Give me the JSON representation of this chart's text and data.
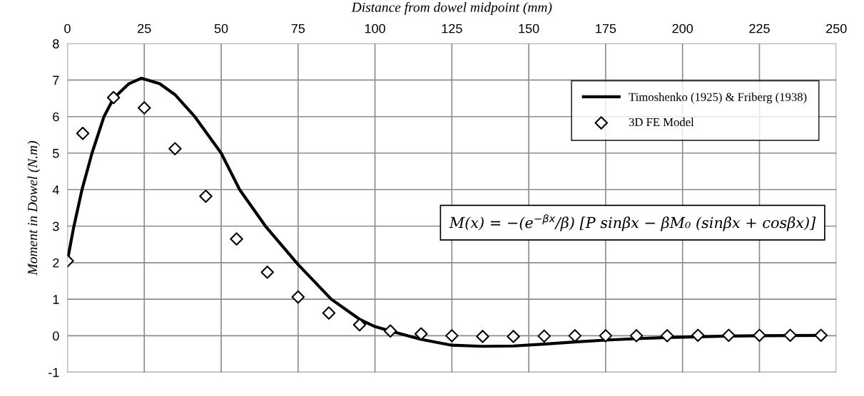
{
  "chart_data": {
    "type": "line",
    "xlabel": "Distance from dowel midpoint (mm)",
    "ylabel": "Moment in Dowel (N.m)",
    "xlim": [
      0,
      250
    ],
    "xticks": [
      0,
      25,
      50,
      75,
      100,
      125,
      150,
      175,
      200,
      225,
      250
    ],
    "ylim": [
      -1,
      8
    ],
    "yticks": [
      -1,
      0,
      1,
      2,
      3,
      4,
      5,
      6,
      7,
      8
    ],
    "grid": true,
    "legend": "top right",
    "annotations": [
      "M(x) = −(e$^{−βx}$/β) [P sinβx − βM₀ (sinβx + cosβx)]"
    ],
    "series": [
      {
        "name": "Timoshenko (1925) & Friberg (1938)",
        "color": "#000000",
        "marker": "none",
        "line_style": "solid",
        "x": [
          0,
          2,
          4.75,
          8,
          11.9,
          15,
          20,
          24,
          30,
          35,
          41.4,
          50,
          56,
          64.4,
          75,
          85.8,
          95,
          100,
          105,
          115,
          125,
          135,
          145,
          155,
          165,
          175,
          185,
          195,
          205,
          215,
          225,
          245
        ],
        "values": [
          2.05,
          2.95,
          4.0,
          5.0,
          6.0,
          6.5,
          6.9,
          7.05,
          6.9,
          6.6,
          6.0,
          5.0,
          4.0,
          3.0,
          1.95,
          1.0,
          0.45,
          0.25,
          0.13,
          -0.1,
          -0.26,
          -0.29,
          -0.28,
          -0.23,
          -0.17,
          -0.12,
          -0.08,
          -0.05,
          -0.03,
          -0.01,
          0.0,
          0.01
        ]
      },
      {
        "name": "3D FE Model",
        "type": "scatter",
        "color": "#000000",
        "marker": "diamond",
        "x": [
          0,
          5,
          15,
          25,
          35,
          45,
          55,
          65,
          75,
          85,
          95,
          105,
          115,
          125,
          135,
          145,
          155,
          165,
          175,
          185,
          195,
          205,
          215,
          225,
          235,
          245
        ],
        "values": [
          2.05,
          5.54,
          6.52,
          6.24,
          5.12,
          3.82,
          2.65,
          1.74,
          1.06,
          0.62,
          0.3,
          0.13,
          0.05,
          0.0,
          -0.02,
          -0.02,
          -0.01,
          0.0,
          0.0,
          0.0,
          0.0,
          0.01,
          0.01,
          0.01,
          0.01,
          0.01
        ]
      }
    ]
  }
}
